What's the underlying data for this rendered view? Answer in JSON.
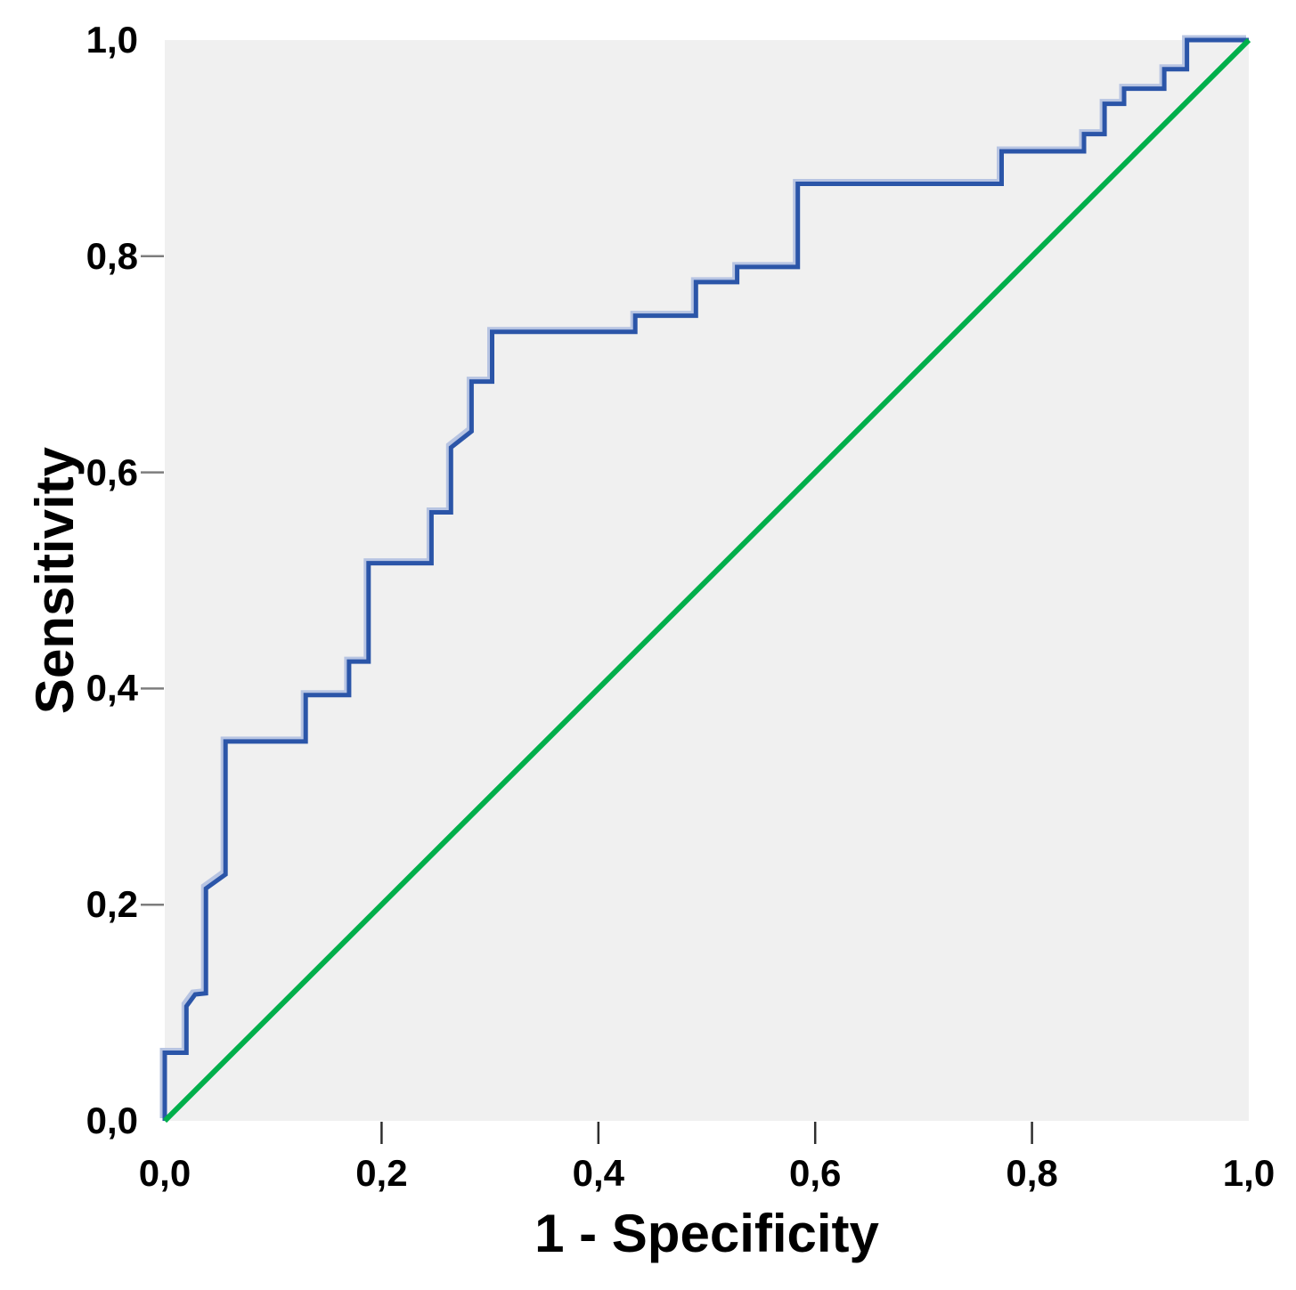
{
  "figure": {
    "background": "#ffffff",
    "plot_background": "#f0f0f0"
  },
  "chart_data": {
    "type": "line",
    "subtype": "roc-step-curve",
    "title": "",
    "xlabel": "1 - Specificity",
    "ylabel": "Sensitivity",
    "xlim": [
      0,
      1
    ],
    "ylim": [
      0,
      1
    ],
    "grid": false,
    "legend": "none",
    "x_tick_color": "#2e2e2e",
    "y_tick_color": "#7d7d7d",
    "x_ticks": [
      {
        "value": 0.0,
        "label": "0,0",
        "mark": false
      },
      {
        "value": 0.2,
        "label": "0,2",
        "mark": true
      },
      {
        "value": 0.4,
        "label": "0,4",
        "mark": true
      },
      {
        "value": 0.6,
        "label": "0,6",
        "mark": true
      },
      {
        "value": 0.8,
        "label": "0,8",
        "mark": true
      },
      {
        "value": 1.0,
        "label": "1,0",
        "mark": false
      }
    ],
    "y_ticks": [
      {
        "value": 0.0,
        "label": "0,0",
        "mark": false
      },
      {
        "value": 0.2,
        "label": "0,2",
        "mark": true
      },
      {
        "value": 0.4,
        "label": "0,4",
        "mark": true
      },
      {
        "value": 0.6,
        "label": "0,6",
        "mark": true
      },
      {
        "value": 0.8,
        "label": "0,8",
        "mark": true
      },
      {
        "value": 1.0,
        "label": "1,0",
        "mark": false
      }
    ],
    "series": [
      {
        "id": "roc-curve",
        "color": "#2B55A8",
        "halo_color": "#B7C4E2",
        "width": 5,
        "points": [
          [
            0.0,
            0.0
          ],
          [
            0.0,
            0.063
          ],
          [
            0.02,
            0.063
          ],
          [
            0.02,
            0.106
          ],
          [
            0.028,
            0.117
          ],
          [
            0.038,
            0.118
          ],
          [
            0.038,
            0.215
          ],
          [
            0.056,
            0.228
          ],
          [
            0.056,
            0.351
          ],
          [
            0.13,
            0.351
          ],
          [
            0.13,
            0.394
          ],
          [
            0.17,
            0.394
          ],
          [
            0.17,
            0.425
          ],
          [
            0.188,
            0.425
          ],
          [
            0.188,
            0.516
          ],
          [
            0.246,
            0.516
          ],
          [
            0.246,
            0.563
          ],
          [
            0.264,
            0.563
          ],
          [
            0.264,
            0.623
          ],
          [
            0.283,
            0.638
          ],
          [
            0.283,
            0.684
          ],
          [
            0.302,
            0.684
          ],
          [
            0.302,
            0.73
          ],
          [
            0.434,
            0.73
          ],
          [
            0.434,
            0.745
          ],
          [
            0.49,
            0.745
          ],
          [
            0.49,
            0.776
          ],
          [
            0.528,
            0.776
          ],
          [
            0.528,
            0.79
          ],
          [
            0.584,
            0.79
          ],
          [
            0.584,
            0.867
          ],
          [
            0.772,
            0.867
          ],
          [
            0.772,
            0.897
          ],
          [
            0.848,
            0.897
          ],
          [
            0.848,
            0.913
          ],
          [
            0.867,
            0.913
          ],
          [
            0.867,
            0.941
          ],
          [
            0.885,
            0.941
          ],
          [
            0.885,
            0.955
          ],
          [
            0.922,
            0.955
          ],
          [
            0.922,
            0.973
          ],
          [
            0.943,
            0.973
          ],
          [
            0.943,
            1.0
          ],
          [
            1.0,
            1.0
          ]
        ]
      },
      {
        "id": "reference-line",
        "color": "#00AF4B",
        "halo_color": null,
        "width": 6,
        "points": [
          [
            0.0,
            0.0
          ],
          [
            1.0,
            1.0
          ]
        ]
      }
    ]
  }
}
